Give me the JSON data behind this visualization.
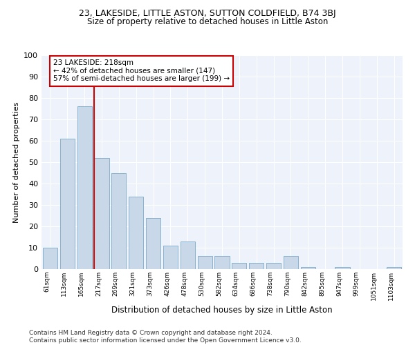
{
  "title": "23, LAKESIDE, LITTLE ASTON, SUTTON COLDFIELD, B74 3BJ",
  "subtitle": "Size of property relative to detached houses in Little Aston",
  "xlabel": "Distribution of detached houses by size in Little Aston",
  "ylabel": "Number of detached properties",
  "bar_color": "#c8d8e8",
  "bar_edge_color": "#7aaac8",
  "bg_color": "#eef2fa",
  "grid_color": "#ffffff",
  "annotation_box_color": "#cc0000",
  "vline_color": "#cc0000",
  "annotation_line1": "23 LAKESIDE: 218sqm",
  "annotation_line2": "← 42% of detached houses are smaller (147)",
  "annotation_line3": "57% of semi-detached houses are larger (199) →",
  "categories": [
    "61sqm",
    "113sqm",
    "165sqm",
    "217sqm",
    "269sqm",
    "321sqm",
    "373sqm",
    "426sqm",
    "478sqm",
    "530sqm",
    "582sqm",
    "634sqm",
    "686sqm",
    "738sqm",
    "790sqm",
    "842sqm",
    "895sqm",
    "947sqm",
    "999sqm",
    "1051sqm",
    "1103sqm"
  ],
  "values": [
    10,
    61,
    76,
    52,
    45,
    34,
    24,
    11,
    13,
    6,
    6,
    3,
    3,
    3,
    6,
    1,
    0,
    1,
    0,
    0,
    1
  ],
  "ylim": [
    0,
    100
  ],
  "yticks": [
    0,
    10,
    20,
    30,
    40,
    50,
    60,
    70,
    80,
    90,
    100
  ],
  "footer_line1": "Contains HM Land Registry data © Crown copyright and database right 2024.",
  "footer_line2": "Contains public sector information licensed under the Open Government Licence v3.0."
}
